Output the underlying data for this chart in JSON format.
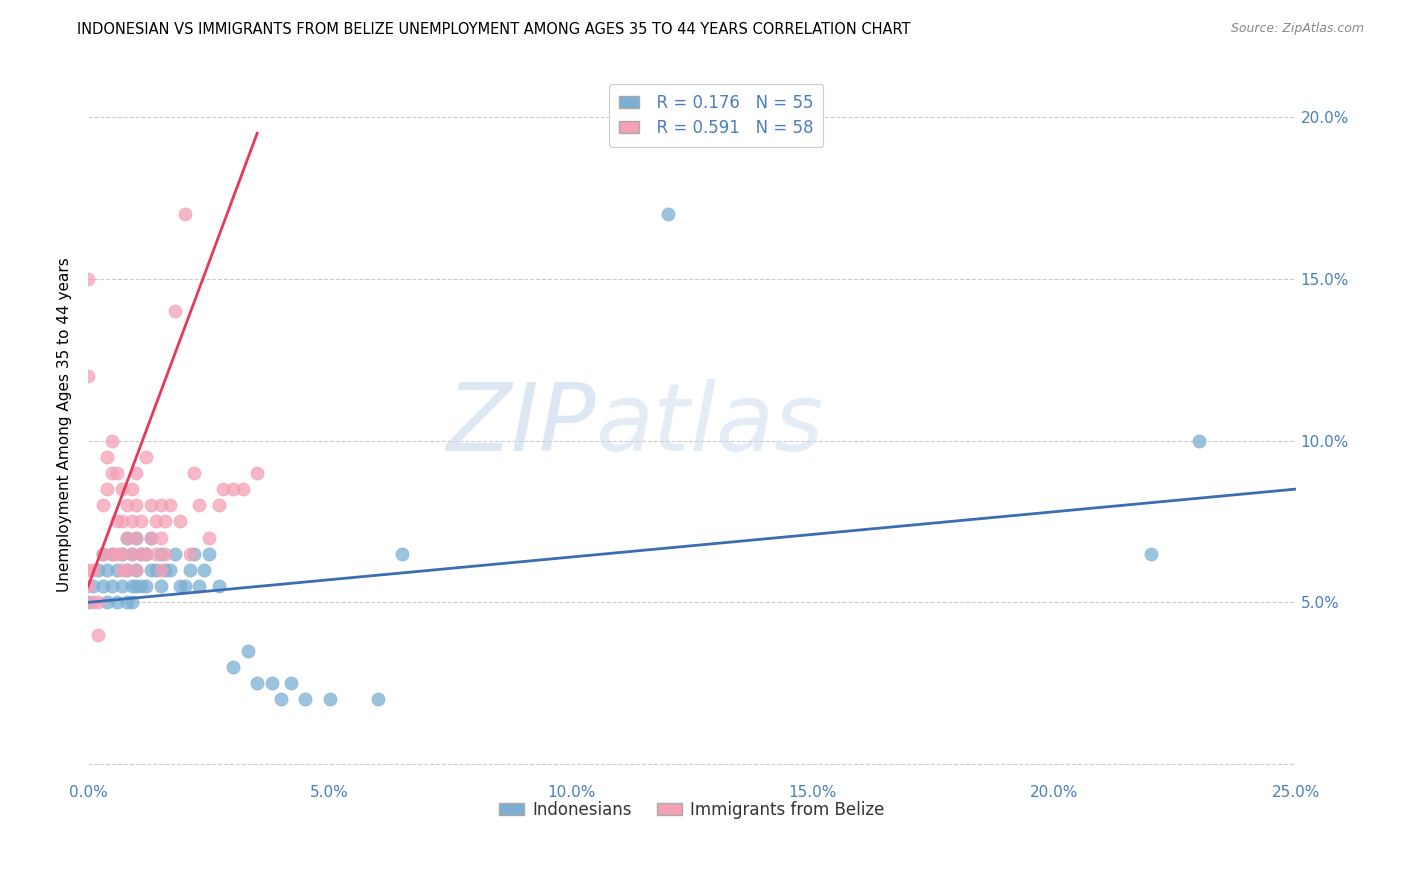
{
  "title": "INDONESIAN VS IMMIGRANTS FROM BELIZE UNEMPLOYMENT AMONG AGES 35 TO 44 YEARS CORRELATION CHART",
  "source": "Source: ZipAtlas.com",
  "ylabel": "Unemployment Among Ages 35 to 44 years",
  "xlim": [
    0.0,
    0.25
  ],
  "ylim": [
    -0.005,
    0.215
  ],
  "legend_R1": "R = 0.176",
  "legend_N1": "N = 55",
  "legend_R2": "R = 0.591",
  "legend_N2": "N = 58",
  "color_indonesian": "#7BAFD4",
  "color_belize": "#F4A0B5",
  "color_line_indonesian": "#3B6DB3",
  "color_line_belize": "#E8395A",
  "watermark_zip": "ZIP",
  "watermark_atlas": "atlas",
  "background_color": "#ffffff",
  "indonesian_x": [
    0.0,
    0.001,
    0.002,
    0.003,
    0.003,
    0.004,
    0.004,
    0.005,
    0.005,
    0.006,
    0.006,
    0.007,
    0.007,
    0.008,
    0.008,
    0.008,
    0.009,
    0.009,
    0.009,
    0.01,
    0.01,
    0.01,
    0.011,
    0.011,
    0.012,
    0.012,
    0.013,
    0.013,
    0.014,
    0.015,
    0.015,
    0.016,
    0.017,
    0.018,
    0.019,
    0.02,
    0.021,
    0.022,
    0.023,
    0.024,
    0.025,
    0.027,
    0.03,
    0.033,
    0.035,
    0.038,
    0.04,
    0.042,
    0.045,
    0.05,
    0.06,
    0.065,
    0.12,
    0.22,
    0.23
  ],
  "indonesian_y": [
    0.05,
    0.055,
    0.06,
    0.055,
    0.065,
    0.05,
    0.06,
    0.055,
    0.065,
    0.05,
    0.06,
    0.055,
    0.065,
    0.05,
    0.06,
    0.07,
    0.055,
    0.065,
    0.05,
    0.055,
    0.06,
    0.07,
    0.055,
    0.065,
    0.055,
    0.065,
    0.06,
    0.07,
    0.06,
    0.055,
    0.065,
    0.06,
    0.06,
    0.065,
    0.055,
    0.055,
    0.06,
    0.065,
    0.055,
    0.06,
    0.065,
    0.055,
    0.03,
    0.035,
    0.025,
    0.025,
    0.02,
    0.025,
    0.02,
    0.02,
    0.02,
    0.065,
    0.17,
    0.065,
    0.1
  ],
  "belize_x": [
    0.0,
    0.0,
    0.0,
    0.0,
    0.001,
    0.001,
    0.002,
    0.002,
    0.003,
    0.003,
    0.004,
    0.004,
    0.005,
    0.005,
    0.005,
    0.006,
    0.006,
    0.006,
    0.007,
    0.007,
    0.007,
    0.007,
    0.008,
    0.008,
    0.008,
    0.009,
    0.009,
    0.009,
    0.01,
    0.01,
    0.01,
    0.01,
    0.011,
    0.011,
    0.012,
    0.012,
    0.013,
    0.013,
    0.014,
    0.014,
    0.015,
    0.015,
    0.015,
    0.016,
    0.016,
    0.017,
    0.018,
    0.019,
    0.02,
    0.021,
    0.022,
    0.023,
    0.025,
    0.027,
    0.028,
    0.03,
    0.032,
    0.035
  ],
  "belize_y": [
    0.055,
    0.06,
    0.12,
    0.15,
    0.05,
    0.06,
    0.04,
    0.05,
    0.065,
    0.08,
    0.085,
    0.095,
    0.065,
    0.09,
    0.1,
    0.065,
    0.075,
    0.09,
    0.06,
    0.065,
    0.075,
    0.085,
    0.06,
    0.07,
    0.08,
    0.065,
    0.075,
    0.085,
    0.06,
    0.07,
    0.08,
    0.09,
    0.065,
    0.075,
    0.065,
    0.095,
    0.07,
    0.08,
    0.065,
    0.075,
    0.06,
    0.07,
    0.08,
    0.065,
    0.075,
    0.08,
    0.14,
    0.075,
    0.17,
    0.065,
    0.09,
    0.08,
    0.07,
    0.08,
    0.085,
    0.085,
    0.085,
    0.09
  ],
  "indo_line_x": [
    0.0,
    0.25
  ],
  "indo_line_y": [
    0.05,
    0.085
  ],
  "belize_line_x": [
    0.0,
    0.035
  ],
  "belize_line_y": [
    0.055,
    0.195
  ]
}
